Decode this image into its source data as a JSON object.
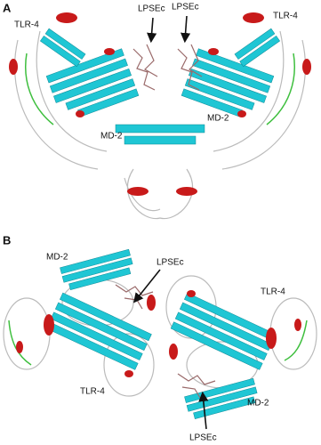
{
  "panels": [
    {
      "label": "A",
      "labels": [
        "TLR-4",
        "LPSEc",
        "LPSEc",
        "TLR-4",
        "MD-2",
        "MD-2"
      ]
    },
    {
      "label": "B",
      "labels": [
        "MD-2",
        "LPSEc",
        "TLR-4",
        "TLR-4",
        "MD-2",
        "LPSEc"
      ]
    }
  ]
}
